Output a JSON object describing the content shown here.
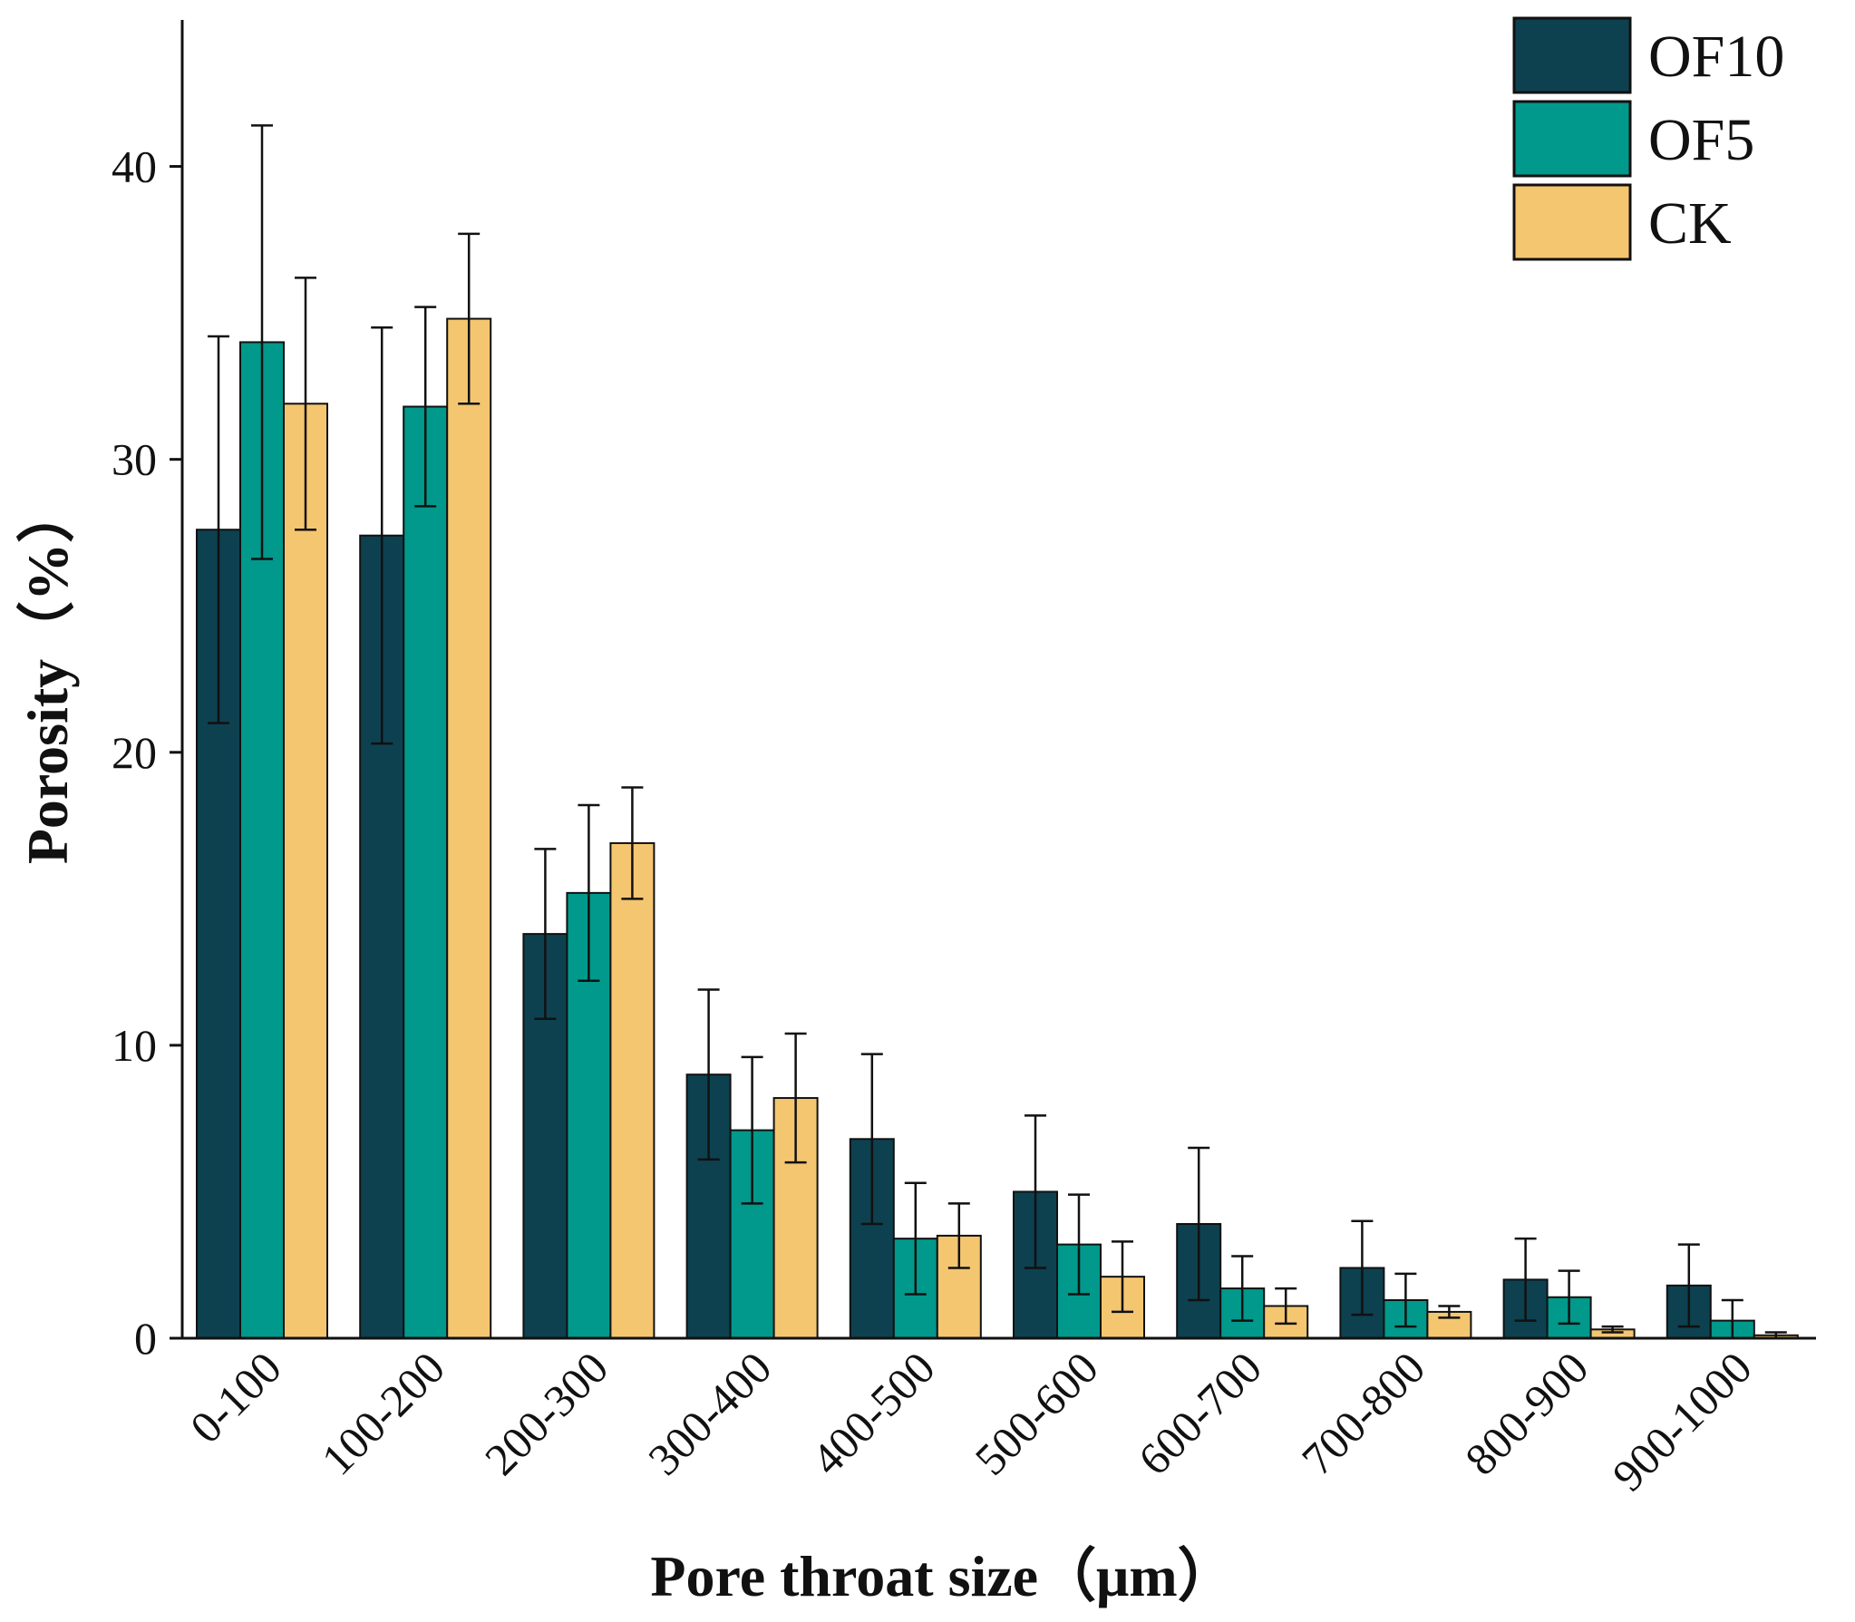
{
  "chart_data": {
    "type": "bar",
    "xlabel": "Pore throat size（μm）",
    "ylabel": "Porosity（%）",
    "ylim": [
      0,
      45
    ],
    "yticks": [
      0,
      10,
      20,
      30,
      40
    ],
    "categories": [
      "0-100",
      "100-200",
      "200-300",
      "300-400",
      "400-500",
      "500-600",
      "600-700",
      "700-800",
      "800-900",
      "900-1000"
    ],
    "legend_position": "top-right",
    "grid": false,
    "series": [
      {
        "name": "OF10",
        "color": "#0d4150",
        "values": [
          27.6,
          27.4,
          13.8,
          9.0,
          6.8,
          5.0,
          3.9,
          2.4,
          2.0,
          1.8
        ],
        "errors": [
          6.6,
          7.1,
          2.9,
          2.9,
          2.9,
          2.6,
          2.6,
          1.6,
          1.4,
          1.4
        ]
      },
      {
        "name": "OF5",
        "color": "#00998b",
        "values": [
          34.0,
          31.8,
          15.2,
          7.1,
          3.4,
          3.2,
          1.7,
          1.3,
          1.4,
          0.6
        ],
        "errors": [
          7.4,
          3.4,
          3.0,
          2.5,
          1.9,
          1.7,
          1.1,
          0.9,
          0.9,
          0.7
        ]
      },
      {
        "name": "CK",
        "color": "#f5c670",
        "values": [
          31.9,
          34.8,
          16.9,
          8.2,
          3.5,
          2.1,
          1.1,
          0.9,
          0.3,
          0.1
        ],
        "errors": [
          4.3,
          2.9,
          1.9,
          2.2,
          1.1,
          1.2,
          0.6,
          0.2,
          0.1,
          0.1
        ]
      }
    ]
  }
}
